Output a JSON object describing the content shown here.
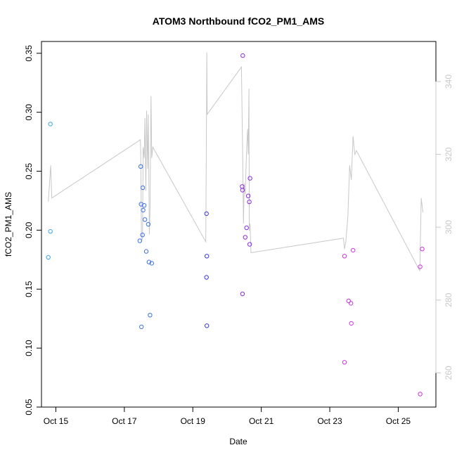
{
  "chart_data": {
    "type": "scatter",
    "title": "ATOM3 Northbound fCO2_PM1_AMS",
    "xlabel": "Date",
    "ylabel": "fCO2_PM1_AMS",
    "xlim": [
      14.58,
      26.1
    ],
    "ylim": [
      0.05,
      0.36
    ],
    "y2lim": [
      250.6,
      351
    ],
    "x_ticks": [
      {
        "value": 15,
        "label": "Oct 15"
      },
      {
        "value": 17,
        "label": "Oct 17"
      },
      {
        "value": 19,
        "label": "Oct 19"
      },
      {
        "value": 21,
        "label": "Oct 21"
      },
      {
        "value": 23,
        "label": "Oct 23"
      },
      {
        "value": 25,
        "label": "Oct 25"
      }
    ],
    "y_ticks": [
      {
        "value": 0.05,
        "label": "0.05"
      },
      {
        "value": 0.1,
        "label": "0.10"
      },
      {
        "value": 0.15,
        "label": "0.15"
      },
      {
        "value": 0.2,
        "label": "0.20"
      },
      {
        "value": 0.25,
        "label": "0.25"
      },
      {
        "value": 0.3,
        "label": "0.30"
      },
      {
        "value": 0.35,
        "label": "0.35"
      }
    ],
    "y2_ticks": [
      {
        "value": 260,
        "label": "260"
      },
      {
        "value": 280,
        "label": "280"
      },
      {
        "value": 300,
        "label": "300"
      },
      {
        "value": 320,
        "label": "320"
      },
      {
        "value": 340,
        "label": "340"
      }
    ],
    "points": [
      {
        "x": 14.78,
        "y": 0.177,
        "color": "#3aa4e6"
      },
      {
        "x": 14.84,
        "y": 0.199,
        "color": "#3aa4e6"
      },
      {
        "x": 14.84,
        "y": 0.29,
        "color": "#3aa4e6"
      },
      {
        "x": 17.48,
        "y": 0.254,
        "color": "#3d72e8"
      },
      {
        "x": 17.49,
        "y": 0.222,
        "color": "#3d72e8"
      },
      {
        "x": 17.5,
        "y": 0.118,
        "color": "#3d72e8"
      },
      {
        "x": 17.54,
        "y": 0.236,
        "color": "#3d72e8"
      },
      {
        "x": 17.55,
        "y": 0.217,
        "color": "#3d72e8"
      },
      {
        "x": 17.58,
        "y": 0.221,
        "color": "#3d72e8"
      },
      {
        "x": 17.45,
        "y": 0.191,
        "color": "#3d72e8"
      },
      {
        "x": 17.53,
        "y": 0.196,
        "color": "#3d72e8"
      },
      {
        "x": 17.6,
        "y": 0.209,
        "color": "#3d72e8"
      },
      {
        "x": 17.7,
        "y": 0.205,
        "color": "#3d72e8"
      },
      {
        "x": 17.64,
        "y": 0.182,
        "color": "#3d72e8"
      },
      {
        "x": 17.72,
        "y": 0.173,
        "color": "#3d72e8"
      },
      {
        "x": 17.8,
        "y": 0.172,
        "color": "#3d72e8"
      },
      {
        "x": 17.75,
        "y": 0.128,
        "color": "#3d72e8"
      },
      {
        "x": 19.4,
        "y": 0.214,
        "color": "#3a3ae4"
      },
      {
        "x": 19.41,
        "y": 0.178,
        "color": "#3a3ae4"
      },
      {
        "x": 19.4,
        "y": 0.16,
        "color": "#3a3ae4"
      },
      {
        "x": 19.41,
        "y": 0.119,
        "color": "#3a3ae4"
      },
      {
        "x": 20.44,
        "y": 0.237,
        "color": "#8a2be2"
      },
      {
        "x": 20.45,
        "y": 0.234,
        "color": "#8a2be2"
      },
      {
        "x": 20.46,
        "y": 0.348,
        "color": "#8a2be2"
      },
      {
        "x": 20.45,
        "y": 0.146,
        "color": "#8a2be2"
      },
      {
        "x": 20.53,
        "y": 0.194,
        "color": "#8a2be2"
      },
      {
        "x": 20.57,
        "y": 0.202,
        "color": "#8a2be2"
      },
      {
        "x": 20.62,
        "y": 0.229,
        "color": "#8a2be2"
      },
      {
        "x": 20.65,
        "y": 0.224,
        "color": "#8a2be2"
      },
      {
        "x": 20.67,
        "y": 0.244,
        "color": "#8a2be2"
      },
      {
        "x": 20.66,
        "y": 0.188,
        "color": "#8a2be2"
      },
      {
        "x": 23.43,
        "y": 0.178,
        "color": "#cc33e0"
      },
      {
        "x": 23.43,
        "y": 0.088,
        "color": "#cc33e0"
      },
      {
        "x": 23.55,
        "y": 0.14,
        "color": "#cc33e0"
      },
      {
        "x": 23.62,
        "y": 0.138,
        "color": "#cc33e0"
      },
      {
        "x": 23.63,
        "y": 0.121,
        "color": "#cc33e0"
      },
      {
        "x": 23.68,
        "y": 0.183,
        "color": "#cc33e0"
      },
      {
        "x": 25.64,
        "y": 0.169,
        "color": "#cc33e0"
      },
      {
        "x": 25.7,
        "y": 0.184,
        "color": "#cc33e0"
      },
      {
        "x": 25.64,
        "y": 0.061,
        "color": "#cc33e0"
      }
    ],
    "line_series": {
      "axis": "right",
      "color": "#c8c8c8",
      "x": [
        14.78,
        14.85,
        14.88,
        17.47,
        17.48,
        17.5,
        17.53,
        17.55,
        17.58,
        17.6,
        17.63,
        17.65,
        17.68,
        17.7,
        17.73,
        17.75,
        17.78,
        17.8,
        17.83,
        19.38,
        19.41,
        19.42,
        20.42,
        20.45,
        20.48,
        20.5,
        20.53,
        20.56,
        20.58,
        20.6,
        20.62,
        20.64,
        20.65,
        20.67,
        20.7,
        23.4,
        23.43,
        23.47,
        23.53,
        23.58,
        23.63,
        23.68,
        23.73,
        23.78,
        25.63,
        25.67,
        25.72
      ],
      "y": [
        307,
        317,
        308,
        324,
        320,
        296,
        297,
        322,
        319,
        330,
        310,
        332,
        316,
        331,
        298,
        305,
        336,
        319,
        322,
        296,
        348,
        331,
        344,
        323,
        301,
        312,
        309,
        318,
        323,
        327,
        320,
        338,
        299,
        301,
        293,
        297,
        294,
        296,
        303,
        317,
        313,
        325,
        320,
        321,
        288,
        308,
        304
      ]
    }
  }
}
